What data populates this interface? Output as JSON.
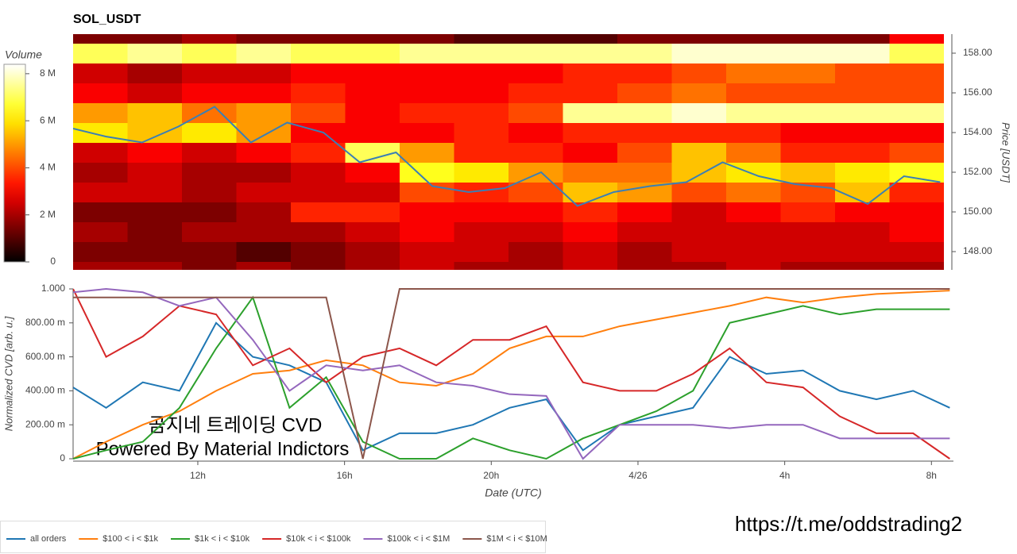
{
  "chart_data": [
    {
      "type": "heatmap",
      "title": "SOL_USDT",
      "x_bins": [
        8.6,
        10.1,
        11.6,
        13.1,
        14.6,
        16.1,
        17.6,
        19.1,
        20.6,
        22.1,
        23.6,
        25.1,
        26.6,
        28.1,
        29.6,
        31.1,
        32.6
      ],
      "y_bins": [
        146.5,
        147.5,
        148.5,
        149.5,
        150.5,
        151.5,
        152.5,
        153.5,
        154.5,
        155.5,
        156.5,
        157.5,
        158.5,
        159.5
      ],
      "z": [
        [
          2,
          2,
          1.5,
          2,
          1.5,
          2,
          2.5,
          2,
          2,
          2.5,
          2,
          2,
          2.5,
          2,
          2,
          2
        ],
        [
          1.5,
          1.5,
          1.5,
          1,
          1.5,
          2,
          2.5,
          2.5,
          2,
          2.5,
          2,
          2.5,
          2.5,
          2.5,
          2.5,
          2.5
        ],
        [
          2,
          1.5,
          2,
          2,
          2,
          2.5,
          3,
          2.5,
          2.5,
          3,
          2.5,
          2.5,
          2.5,
          2.5,
          2.5,
          3
        ],
        [
          1.5,
          1.5,
          1.5,
          2,
          3.5,
          3.5,
          3,
          3,
          3,
          3.5,
          3,
          2.5,
          3,
          3.5,
          3,
          3
        ],
        [
          2.5,
          2.5,
          2,
          2.5,
          2.5,
          2.5,
          4,
          3.5,
          4,
          5.5,
          5,
          4,
          4.5,
          4,
          5.5,
          3.5
        ],
        [
          2,
          2.5,
          2,
          2,
          2.5,
          3,
          6.5,
          6,
          5,
          4.5,
          4.5,
          5.5,
          6,
          5.5,
          6,
          6.5
        ],
        [
          2.5,
          3,
          2.5,
          3,
          3.5,
          7,
          5,
          3.5,
          3.5,
          3,
          4,
          5.5,
          4.5,
          3.5,
          3.5,
          4
        ],
        [
          6,
          5.5,
          6,
          5,
          3,
          3,
          3,
          3.5,
          3,
          3.5,
          3.5,
          3.5,
          3.5,
          3,
          3,
          3
        ],
        [
          5,
          5.5,
          4.5,
          5,
          4,
          3,
          3.5,
          3.5,
          4,
          7.5,
          7.5,
          8,
          7.5,
          7.5,
          7.5,
          7.5
        ],
        [
          3,
          2.5,
          3,
          3,
          3.5,
          3,
          3,
          3,
          3.5,
          3.5,
          4,
          4.5,
          4,
          4,
          4,
          4
        ],
        [
          2.5,
          2,
          2.5,
          2.5,
          3,
          3,
          3,
          3,
          3,
          3.5,
          3.5,
          4,
          4.5,
          4.5,
          4,
          4
        ],
        [
          7,
          7.5,
          7,
          7.5,
          7,
          7,
          7.5,
          7.5,
          7.5,
          7.5,
          7.5,
          8,
          8,
          8,
          8,
          7
        ],
        [
          1.5,
          1.5,
          2,
          1.5,
          1.5,
          1.5,
          1.5,
          1,
          1,
          1,
          1.5,
          1.5,
          1.5,
          1.5,
          1.5,
          3
        ]
      ],
      "colorbar": {
        "label": "Volume",
        "lim": [
          0,
          8.4
        ],
        "ticks": [
          0,
          {
            "value": 2,
            "label": "2 M"
          },
          {
            "value": 4,
            "label": "4 M"
          },
          {
            "value": 6,
            "label": "6 M"
          },
          {
            "value": 8,
            "label": "8 M"
          }
        ]
      },
      "line": {
        "color": "#3b7fb5",
        "x": [
          8.6,
          9.5,
          10.5,
          11.5,
          12.5,
          13.5,
          14.5,
          15.5,
          16.5,
          17.5,
          18.5,
          19.5,
          20.5,
          21.5,
          22.5,
          23.5,
          24.5,
          25.5,
          26.5,
          27.5,
          28.5,
          29.5,
          30.5,
          31.5,
          32.5
        ],
        "values": [
          154.2,
          153.8,
          153.5,
          154.3,
          155.3,
          153.5,
          154.5,
          154.0,
          152.5,
          153.0,
          151.3,
          151.0,
          151.2,
          152.0,
          150.3,
          151.0,
          151.3,
          151.5,
          152.5,
          151.8,
          151.4,
          151.2,
          150.4,
          151.8,
          151.5
        ]
      },
      "xlim": [
        8.6,
        32.6
      ],
      "ylabel": "Price [USDT]",
      "ylim": [
        147.08,
        158.96
      ],
      "yticks": [
        {
          "value": 148,
          "label": "148.00"
        },
        {
          "value": 150,
          "label": "150.00"
        },
        {
          "value": 152,
          "label": "152.00"
        },
        {
          "value": 154,
          "label": "154.00"
        },
        {
          "value": 156,
          "label": "156.00"
        },
        {
          "value": 158,
          "label": "158.00"
        }
      ]
    },
    {
      "type": "line",
      "ylabel": "Normalized CVD [arb. u.]",
      "xlabel": "Date (UTC)",
      "x": [
        8.6,
        9.5,
        10.5,
        11.5,
        12.5,
        13.5,
        14.5,
        15.5,
        16.5,
        17.5,
        18.5,
        19.5,
        20.5,
        21.5,
        22.5,
        23.5,
        24.5,
        25.5,
        26.5,
        27.5,
        28.5,
        29.5,
        30.5,
        31.5,
        32.5
      ],
      "series": [
        {
          "name": "all orders",
          "color": "#1f77b4",
          "values": [
            0.42,
            0.3,
            0.45,
            0.4,
            0.8,
            0.6,
            0.55,
            0.45,
            0.05,
            0.15,
            0.15,
            0.2,
            0.3,
            0.35,
            0.05,
            0.2,
            0.25,
            0.3,
            0.6,
            0.5,
            0.52,
            0.4,
            0.35,
            0.4,
            0.3
          ]
        },
        {
          "name": "$100 < i < $1k",
          "color": "#ff7f0e",
          "values": [
            0.0,
            0.1,
            0.2,
            0.28,
            0.4,
            0.5,
            0.52,
            0.58,
            0.55,
            0.45,
            0.43,
            0.5,
            0.65,
            0.72,
            0.72,
            0.78,
            0.82,
            0.86,
            0.9,
            0.95,
            0.92,
            0.95,
            0.97,
            0.98,
            0.99
          ]
        },
        {
          "name": "$1k < i < $10k",
          "color": "#2ca02c",
          "values": [
            0.0,
            0.05,
            0.1,
            0.3,
            0.65,
            0.95,
            0.3,
            0.48,
            0.1,
            0.0,
            0.0,
            0.12,
            0.05,
            0.0,
            0.12,
            0.2,
            0.28,
            0.4,
            0.8,
            0.85,
            0.9,
            0.85,
            0.88,
            0.88,
            0.88
          ]
        },
        {
          "name": "$10k < i < $100k",
          "color": "#d62728",
          "values": [
            1.0,
            0.6,
            0.72,
            0.9,
            0.85,
            0.55,
            0.65,
            0.45,
            0.6,
            0.65,
            0.55,
            0.7,
            0.7,
            0.78,
            0.45,
            0.4,
            0.4,
            0.5,
            0.65,
            0.45,
            0.42,
            0.25,
            0.15,
            0.15,
            0.0
          ]
        },
        {
          "name": "$100k < i < $1M",
          "color": "#9467bd",
          "values": [
            0.98,
            1.0,
            0.98,
            0.9,
            0.95,
            0.7,
            0.4,
            0.55,
            0.52,
            0.55,
            0.45,
            0.43,
            0.38,
            0.37,
            0.0,
            0.2,
            0.2,
            0.2,
            0.18,
            0.2,
            0.2,
            0.12,
            0.12,
            0.12,
            0.12
          ]
        },
        {
          "name": "$1M < i < $10M",
          "color": "#8c564b",
          "values": [
            0.95,
            0.95,
            0.95,
            0.95,
            0.95,
            0.95,
            0.95,
            0.95,
            0.0,
            1.0,
            1.0,
            1.0,
            1.0,
            1.0,
            1.0,
            1.0,
            1.0,
            1.0,
            1.0,
            1.0,
            1.0,
            1.0,
            1.0,
            1.0,
            1.0
          ]
        }
      ],
      "xlim": [
        8.6,
        32.6
      ],
      "xticks": [
        {
          "value": 12,
          "label": "12h"
        },
        {
          "value": 16,
          "label": "16h"
        },
        {
          "value": 20,
          "label": "20h"
        },
        {
          "value": 24,
          "label": "4/26"
        },
        {
          "value": 28,
          "label": "4h"
        },
        {
          "value": 32,
          "label": "8h"
        }
      ],
      "ylim": [
        0,
        1
      ],
      "yticks": [
        0,
        {
          "value": 0.2,
          "label": "200.00 m"
        },
        {
          "value": 0.4,
          "label": "400.00 m"
        },
        {
          "value": 0.6,
          "label": "600.00 m"
        },
        {
          "value": 0.8,
          "label": "800.00 m"
        },
        {
          "value": 1,
          "label": "1.000"
        }
      ],
      "legend": "bottom-left",
      "annotations": [
        "곰지네 트레이딩 CVD",
        "Powered By Material Indictors",
        "https://t.me/oddstrading2"
      ]
    }
  ]
}
